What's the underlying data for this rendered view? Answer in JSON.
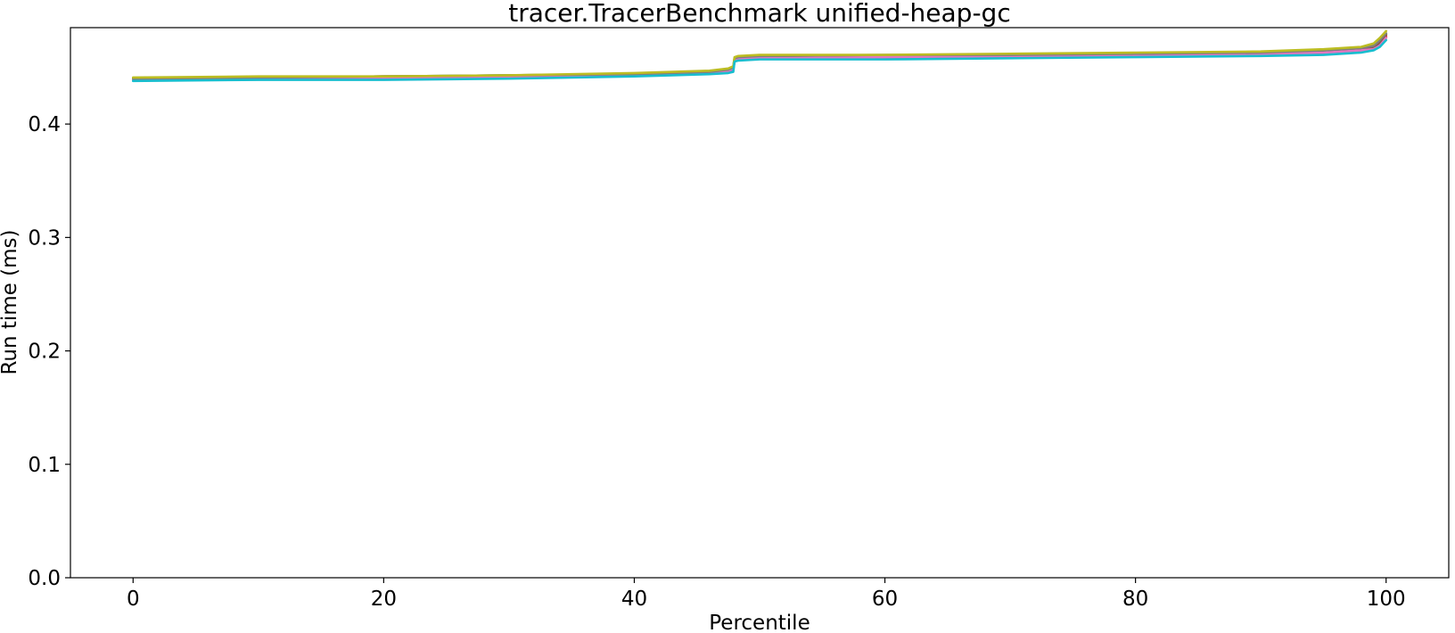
{
  "chart_data": {
    "type": "line",
    "title": "tracer.TracerBenchmark unified-heap-gc",
    "xlabel": "Percentile",
    "ylabel": "Run time (ms)",
    "xlim": [
      -5,
      105
    ],
    "ylim": [
      0,
      0.485
    ],
    "xticks": [
      0,
      20,
      40,
      60,
      80,
      100
    ],
    "xtick_labels": [
      "0",
      "20",
      "40",
      "60",
      "80",
      "100"
    ],
    "yticks": [
      0.0,
      0.1,
      0.2,
      0.3,
      0.4
    ],
    "ytick_labels": [
      "0.0",
      "0.1",
      "0.2",
      "0.3",
      "0.4"
    ],
    "grid": false,
    "legend": "none",
    "series": [
      {
        "color": "#1f77b4",
        "x": [
          0,
          10,
          20,
          30,
          40,
          46,
          47.5,
          47.9,
          48,
          48.3,
          50,
          60,
          70,
          80,
          90,
          95,
          98,
          99,
          99.5,
          100
        ],
        "y": [
          0.439,
          0.44,
          0.441,
          0.441,
          0.443,
          0.445,
          0.446,
          0.448,
          0.456,
          0.457,
          0.458,
          0.459,
          0.459,
          0.46,
          0.462,
          0.463,
          0.465,
          0.466,
          0.47,
          0.477
        ]
      },
      {
        "color": "#ff7f0e",
        "x": [
          0,
          10,
          20,
          30,
          40,
          46,
          47.5,
          47.9,
          48,
          48.3,
          50,
          60,
          70,
          80,
          90,
          95,
          98,
          99,
          99.5,
          100
        ],
        "y": [
          0.44,
          0.441,
          0.442,
          0.442,
          0.444,
          0.446,
          0.447,
          0.449,
          0.457,
          0.458,
          0.459,
          0.46,
          0.46,
          0.461,
          0.463,
          0.464,
          0.466,
          0.468,
          0.472,
          0.478
        ]
      },
      {
        "color": "#2ca02c",
        "x": [
          0,
          10,
          20,
          30,
          40,
          46,
          47.5,
          47.9,
          48,
          48.3,
          50,
          60,
          70,
          80,
          90,
          95,
          98,
          99,
          99.5,
          100
        ],
        "y": [
          0.44,
          0.441,
          0.442,
          0.443,
          0.444,
          0.446,
          0.448,
          0.45,
          0.458,
          0.459,
          0.46,
          0.46,
          0.461,
          0.462,
          0.463,
          0.464,
          0.466,
          0.469,
          0.473,
          0.479
        ]
      },
      {
        "color": "#d62728",
        "x": [
          0,
          10,
          20,
          30,
          40,
          46,
          47.5,
          47.9,
          48,
          48.3,
          50,
          60,
          70,
          80,
          90,
          95,
          98,
          99,
          99.5,
          100
        ],
        "y": [
          0.439,
          0.44,
          0.441,
          0.442,
          0.443,
          0.445,
          0.447,
          0.449,
          0.457,
          0.458,
          0.459,
          0.459,
          0.46,
          0.461,
          0.462,
          0.463,
          0.465,
          0.467,
          0.471,
          0.477
        ]
      },
      {
        "color": "#9467bd",
        "x": [
          0,
          10,
          20,
          30,
          40,
          46,
          47.5,
          47.9,
          48,
          48.3,
          50,
          60,
          70,
          80,
          90,
          95,
          98,
          99,
          99.5,
          100
        ],
        "y": [
          0.439,
          0.44,
          0.441,
          0.441,
          0.443,
          0.445,
          0.446,
          0.448,
          0.456,
          0.457,
          0.458,
          0.459,
          0.459,
          0.46,
          0.462,
          0.463,
          0.465,
          0.466,
          0.47,
          0.476
        ]
      },
      {
        "color": "#8c564b",
        "x": [
          0,
          10,
          20,
          30,
          40,
          46,
          47.5,
          47.9,
          48,
          48.3,
          50,
          60,
          70,
          80,
          90,
          95,
          98,
          99,
          99.5,
          100
        ],
        "y": [
          0.44,
          0.441,
          0.442,
          0.442,
          0.444,
          0.446,
          0.448,
          0.45,
          0.457,
          0.458,
          0.459,
          0.46,
          0.461,
          0.461,
          0.463,
          0.464,
          0.466,
          0.468,
          0.472,
          0.479
        ]
      },
      {
        "color": "#e377c2",
        "x": [
          0,
          10,
          20,
          30,
          40,
          46,
          47.5,
          47.9,
          48,
          48.3,
          50,
          60,
          70,
          80,
          90,
          95,
          98,
          99,
          99.5,
          100
        ],
        "y": [
          0.439,
          0.44,
          0.441,
          0.442,
          0.443,
          0.445,
          0.447,
          0.449,
          0.457,
          0.458,
          0.458,
          0.459,
          0.46,
          0.46,
          0.462,
          0.463,
          0.465,
          0.466,
          0.469,
          0.476
        ]
      },
      {
        "color": "#7f7f7f",
        "x": [
          0,
          10,
          20,
          30,
          40,
          46,
          47.5,
          47.9,
          48,
          48.3,
          50,
          60,
          70,
          80,
          90,
          95,
          98,
          99,
          99.5,
          100
        ],
        "y": [
          0.44,
          0.441,
          0.442,
          0.443,
          0.444,
          0.446,
          0.448,
          0.45,
          0.458,
          0.459,
          0.46,
          0.461,
          0.461,
          0.462,
          0.463,
          0.465,
          0.467,
          0.469,
          0.474,
          0.48
        ]
      },
      {
        "color": "#bcbd22",
        "x": [
          0,
          10,
          20,
          30,
          40,
          46,
          47.5,
          47.9,
          48,
          48.3,
          50,
          60,
          70,
          80,
          90,
          95,
          98,
          99,
          99.5,
          100
        ],
        "y": [
          0.441,
          0.442,
          0.442,
          0.443,
          0.445,
          0.447,
          0.449,
          0.451,
          0.459,
          0.46,
          0.461,
          0.461,
          0.462,
          0.463,
          0.464,
          0.466,
          0.468,
          0.471,
          0.476,
          0.482
        ]
      },
      {
        "color": "#17becf",
        "x": [
          0,
          10,
          20,
          30,
          40,
          46,
          47.5,
          47.9,
          48,
          48.3,
          50,
          60,
          70,
          80,
          90,
          95,
          98,
          99,
          99.5,
          100
        ],
        "y": [
          0.438,
          0.439,
          0.439,
          0.44,
          0.442,
          0.444,
          0.445,
          0.446,
          0.455,
          0.456,
          0.457,
          0.457,
          0.458,
          0.459,
          0.46,
          0.461,
          0.463,
          0.465,
          0.468,
          0.474
        ]
      }
    ]
  }
}
